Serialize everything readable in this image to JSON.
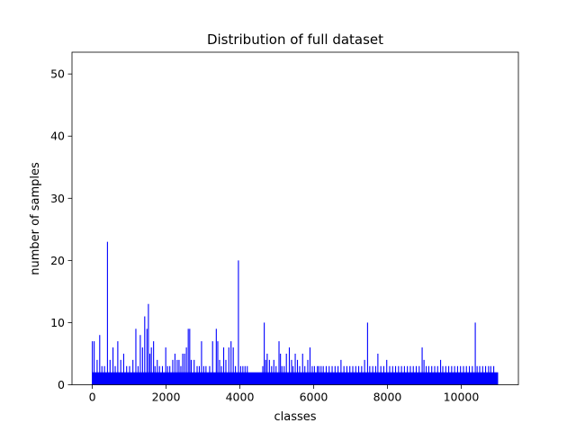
{
  "chart_data": {
    "type": "bar",
    "title": "Distribution of full dataset",
    "xlabel": "classes",
    "ylabel": "number of samples",
    "xlim": [
      -550,
      11550
    ],
    "ylim": [
      0,
      53.5
    ],
    "xticks": [
      0,
      2000,
      4000,
      6000,
      8000,
      10000
    ],
    "yticks": [
      0,
      10,
      20,
      30,
      40,
      50
    ],
    "grid": false,
    "bar_color": "#0000ff",
    "series": [
      {
        "base_value": 2,
        "class_range": [
          0,
          11000
        ],
        "tall_bars": {
          "x": [
            0,
            50,
            130,
            200,
            260,
            330,
            410,
            480,
            560,
            620,
            690,
            770,
            850,
            930,
            1010,
            1100,
            1180,
            1240,
            1300,
            1360,
            1420,
            1480,
            1520,
            1560,
            1600,
            1660,
            1700,
            1760,
            1820,
            1900,
            1990,
            2040,
            2100,
            2180,
            2240,
            2300,
            2350,
            2400,
            2450,
            2500,
            2550,
            2600,
            2640,
            2680,
            2760,
            2840,
            2900,
            2960,
            3020,
            3080,
            3180,
            3260,
            3360,
            3400,
            3450,
            3500,
            3560,
            3620,
            3700,
            3760,
            3820,
            3880,
            3960,
            4020,
            4080,
            4140,
            4200,
            4620,
            4660,
            4700,
            4740,
            4800,
            4860,
            4920,
            4980,
            5060,
            5100,
            5140,
            5200,
            5260,
            5340,
            5400,
            5440,
            5500,
            5560,
            5620,
            5700,
            5760,
            5840,
            5900,
            5960,
            6020,
            6100,
            6140,
            6200,
            6260,
            6340,
            6420,
            6500,
            6580,
            6660,
            6740,
            6820,
            6900,
            6980,
            7060,
            7140,
            7220,
            7300,
            7380,
            7460,
            7520,
            7600,
            7680,
            7740,
            7820,
            7900,
            7980,
            8060,
            8140,
            8220,
            8300,
            8380,
            8460,
            8540,
            8620,
            8700,
            8780,
            8860,
            8940,
            8990,
            9050,
            9120,
            9200,
            9280,
            9360,
            9440,
            9500,
            9580,
            9660,
            9740,
            9820,
            9900,
            9980,
            10060,
            10140,
            10220,
            10300,
            10380,
            10430,
            10500,
            10580,
            10660,
            10740,
            10800,
            10880
          ],
          "y": [
            7,
            7,
            4,
            8,
            3,
            3,
            23,
            4,
            6,
            3,
            7,
            4,
            5,
            3,
            3,
            4,
            9,
            3,
            8,
            6,
            11,
            9,
            13,
            5,
            6,
            7,
            3,
            4,
            3,
            3,
            6,
            3,
            3,
            4,
            5,
            4,
            4,
            3,
            5,
            5,
            6,
            9,
            9,
            4,
            4,
            3,
            3,
            7,
            3,
            3,
            3,
            7,
            9,
            7,
            4,
            3,
            6,
            4,
            6,
            7,
            6,
            3,
            20,
            3,
            3,
            3,
            3,
            3,
            10,
            4,
            5,
            4,
            3,
            4,
            3,
            7,
            5,
            3,
            3,
            5,
            6,
            4,
            3,
            5,
            4,
            3,
            5,
            3,
            4,
            6,
            3,
            3,
            3,
            3,
            3,
            3,
            3,
            3,
            3,
            3,
            3,
            4,
            3,
            3,
            3,
            3,
            3,
            3,
            3,
            4,
            10,
            3,
            3,
            3,
            5,
            3,
            3,
            4,
            3,
            3,
            3,
            3,
            3,
            3,
            3,
            3,
            3,
            3,
            3,
            6,
            4,
            3,
            3,
            3,
            3,
            3,
            4,
            3,
            3,
            3,
            3,
            3,
            3,
            3,
            3,
            3,
            3,
            3,
            10,
            3,
            3,
            3,
            3,
            3,
            3,
            3
          ]
        }
      }
    ]
  }
}
